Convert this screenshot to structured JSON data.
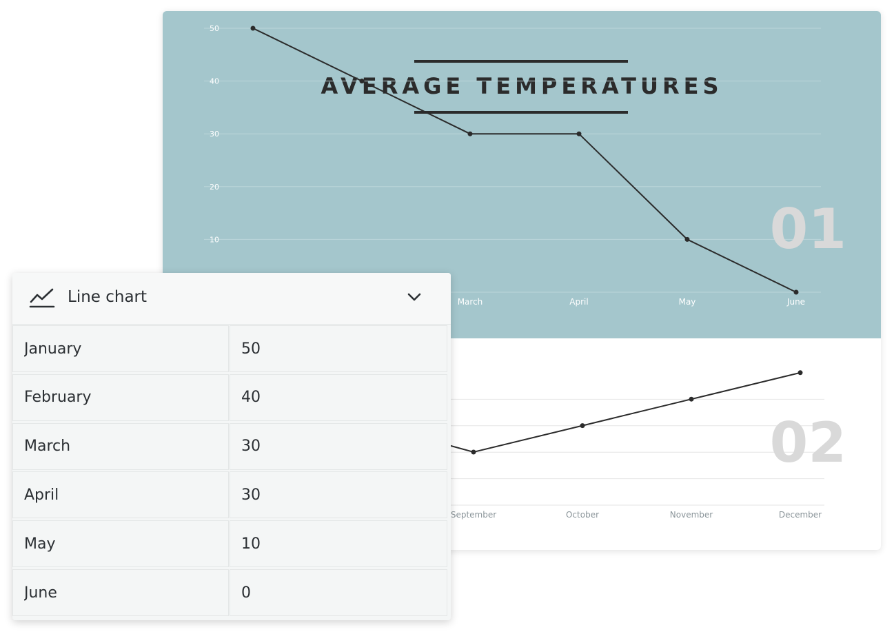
{
  "chart_data": [
    {
      "type": "line",
      "title": "AVERAGE TEMPERATURES",
      "badge": "01",
      "categories": [
        "January",
        "February",
        "March",
        "April",
        "May",
        "June"
      ],
      "series": [
        {
          "values": [
            50,
            40,
            30,
            30,
            10,
            0
          ]
        }
      ],
      "yticks": [
        10,
        20,
        30,
        40,
        50
      ],
      "ylim": [
        0,
        50
      ],
      "grid": true,
      "line_color": "#2b2b2b",
      "grid_color": "#bcd6da",
      "label_color": "#ffffff",
      "badge_color": "#d9d9d9"
    },
    {
      "type": "line",
      "badge": "02",
      "categories": [
        "September",
        "October",
        "November",
        "December"
      ],
      "series": [
        {
          "values": [
            0,
            10,
            20,
            30
          ]
        }
      ],
      "ylim": [
        0,
        40
      ],
      "grid": true,
      "line_color": "#2b2b2b",
      "grid_color": "#e6e6e6",
      "label_color": "#8a9499",
      "badge_color": "#d9d9d9"
    }
  ],
  "editor": {
    "chart_type": {
      "label": "Line chart",
      "icon": "line-chart-icon",
      "dropdown_icon": "chevron-down-icon"
    },
    "rows": [
      {
        "month": "January",
        "value": "50"
      },
      {
        "month": "February",
        "value": "40"
      },
      {
        "month": "March",
        "value": "30"
      },
      {
        "month": "April",
        "value": "30"
      },
      {
        "month": "May",
        "value": "10"
      },
      {
        "month": "June",
        "value": "0"
      }
    ]
  },
  "colors": {
    "accent_panel": "#a4c6cc",
    "text_dark": "#2b2b2b"
  }
}
